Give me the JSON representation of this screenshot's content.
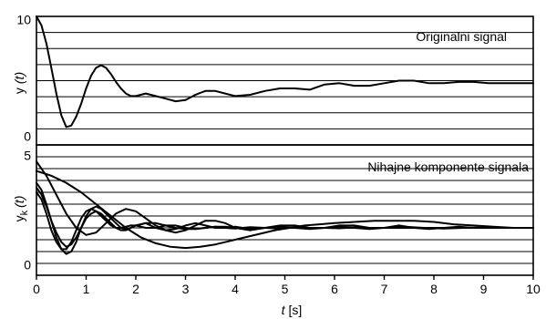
{
  "colors": {
    "line": "#000000",
    "grid": "#000000",
    "background": "#ffffff"
  },
  "chart_data": [
    {
      "type": "line",
      "panel": "top",
      "annotation": "Originalni signal",
      "ylabel": "y",
      "ylabel_arg": "(t)",
      "xlim": [
        0,
        10
      ],
      "ylim": [
        0,
        10
      ],
      "yticks": [
        "0",
        "10"
      ],
      "grid": "horizontal",
      "series": [
        {
          "x": [
            0,
            0.1,
            0.2,
            0.3,
            0.4,
            0.5,
            0.6,
            0.7,
            0.8,
            0.9,
            1.0,
            1.1,
            1.2,
            1.3,
            1.4,
            1.5,
            1.6,
            1.7,
            1.8,
            1.9,
            2.0,
            2.2,
            2.4,
            2.6,
            2.8,
            3.0,
            3.2,
            3.4,
            3.6,
            3.8,
            4.0,
            4.3,
            4.6,
            4.9,
            5.2,
            5.5,
            5.8,
            6.1,
            6.4,
            6.7,
            7.0,
            7.3,
            7.6,
            7.9,
            8.2,
            8.5,
            8.8,
            9.1,
            9.4,
            9.7,
            10.0
          ],
          "y": [
            10.0,
            9.3,
            7.9,
            6.0,
            4.0,
            2.3,
            1.4,
            1.5,
            2.2,
            3.2,
            4.4,
            5.4,
            6.0,
            6.2,
            6.0,
            5.5,
            4.9,
            4.4,
            4.0,
            3.8,
            3.8,
            4.0,
            3.8,
            3.6,
            3.4,
            3.5,
            3.9,
            4.2,
            4.2,
            4.0,
            3.8,
            3.9,
            4.2,
            4.4,
            4.4,
            4.3,
            4.7,
            4.8,
            4.6,
            4.6,
            4.8,
            5.0,
            5.0,
            4.8,
            4.8,
            4.9,
            4.9,
            4.8,
            4.8,
            4.8,
            4.8
          ]
        }
      ]
    },
    {
      "type": "line",
      "panel": "bottom",
      "annotation": "Nihajne komponente signala",
      "ylabel": "y",
      "ylabel_sub": "k",
      "ylabel_arg": "(t)",
      "xlabel": "t",
      "xlabel_unit": "[s]",
      "xlim": [
        0,
        10
      ],
      "ylim": [
        0,
        5.5
      ],
      "yticks": [
        "0",
        "5"
      ],
      "xticks": [
        "0",
        "1",
        "2",
        "3",
        "4",
        "5",
        "6",
        "7",
        "8",
        "9",
        "10"
      ],
      "grid": "horizontal",
      "series": [
        {
          "x": [
            0,
            0.1,
            0.2,
            0.3,
            0.4,
            0.5,
            0.6,
            0.7,
            0.8,
            0.9,
            1.0,
            1.1,
            1.2,
            1.3,
            1.4,
            1.5,
            1.6,
            1.7,
            1.8,
            1.9,
            2.0,
            2.2,
            2.4,
            2.6,
            2.8,
            3.0,
            3.2,
            3.4,
            3.6,
            3.8,
            4.0,
            4.3,
            4.6,
            4.9,
            5.2,
            5.5,
            5.8,
            6.1,
            6.4,
            6.7,
            7.0,
            7.4,
            7.8,
            8.2,
            8.6,
            9.0,
            9.5,
            10.0
          ],
          "y": [
            3.9,
            3.6,
            3.0,
            2.3,
            1.6,
            1.1,
            0.9,
            1.0,
            1.4,
            2.0,
            2.5,
            2.8,
            2.9,
            2.8,
            2.6,
            2.4,
            2.2,
            2.0,
            1.95,
            2.0,
            2.1,
            2.2,
            2.0,
            1.9,
            1.95,
            2.1,
            2.2,
            2.1,
            2.0,
            2.0,
            2.05,
            1.95,
            2.0,
            2.05,
            2.0,
            1.95,
            2.0,
            2.05,
            2.0,
            1.95,
            2.0,
            2.05,
            2.0,
            1.97,
            2.0,
            2.02,
            2.0,
            2.0
          ]
        },
        {
          "x": [
            0,
            0.1,
            0.2,
            0.3,
            0.4,
            0.5,
            0.6,
            0.7,
            0.8,
            0.9,
            1.0,
            1.1,
            1.2,
            1.3,
            1.4,
            1.5,
            1.6,
            1.7,
            1.8,
            1.9,
            2.0,
            2.2,
            2.4,
            2.6,
            2.8,
            3.0,
            3.2,
            3.4,
            3.6,
            3.8,
            4.0,
            4.3,
            4.6,
            4.9,
            5.2,
            5.5,
            5.8,
            6.1,
            6.4,
            6.7,
            7.0,
            7.4,
            7.8,
            8.2,
            8.6,
            9.0,
            9.5,
            10.0
          ],
          "y": [
            3.5,
            3.2,
            2.6,
            1.9,
            1.4,
            1.1,
            1.1,
            1.4,
            1.9,
            2.4,
            2.7,
            2.8,
            2.7,
            2.5,
            2.3,
            2.1,
            2.0,
            2.0,
            2.05,
            2.1,
            2.1,
            2.0,
            2.0,
            2.1,
            2.1,
            2.0,
            1.95,
            2.0,
            2.05,
            2.0,
            1.97,
            2.03,
            2.0,
            1.97,
            2.02,
            2.0,
            2.0,
            1.98,
            2.02,
            2.0,
            2.0,
            2.0,
            2.0,
            2.0,
            2.0,
            2.0,
            2.0,
            2.0
          ]
        },
        {
          "x": [
            0,
            0.1,
            0.2,
            0.3,
            0.4,
            0.5,
            0.6,
            0.7,
            0.8,
            0.9,
            1.0,
            1.1,
            1.2,
            1.3,
            1.4,
            1.5,
            1.6,
            1.7,
            1.8,
            1.9,
            2.0,
            2.2,
            2.4,
            2.6,
            2.8,
            3.0,
            3.2,
            3.4,
            3.6,
            3.8,
            4.0,
            4.3,
            4.6,
            4.9,
            5.2,
            5.5,
            5.8,
            6.1,
            6.4,
            6.7,
            7.0,
            7.4,
            7.8,
            8.2,
            8.6,
            9.0,
            9.5,
            10.0
          ],
          "y": [
            3.7,
            3.4,
            2.9,
            2.3,
            1.8,
            1.4,
            1.2,
            1.3,
            1.6,
            2.0,
            2.4,
            2.6,
            2.7,
            2.6,
            2.4,
            2.2,
            2.0,
            1.9,
            1.9,
            2.0,
            2.1,
            2.2,
            2.2,
            2.1,
            2.0,
            1.95,
            1.95,
            2.0,
            2.05,
            2.05,
            2.0,
            1.98,
            2.0,
            2.02,
            2.0,
            1.98,
            2.0,
            2.0,
            2.0,
            2.0,
            2.0,
            2.0,
            2.0,
            2.0,
            2.0,
            2.0,
            2.0,
            2.0
          ]
        },
        {
          "x": [
            0,
            0.2,
            0.4,
            0.6,
            0.8,
            1.0,
            1.2,
            1.4,
            1.6,
            1.8,
            2.0,
            2.2,
            2.4,
            2.6,
            2.8,
            3.0,
            3.2,
            3.4,
            3.6,
            3.8,
            4.0,
            4.3,
            4.6,
            4.9,
            5.2,
            5.5,
            5.8,
            6.1,
            6.4,
            6.7,
            7.0,
            7.3,
            7.6,
            7.9,
            8.2,
            8.5,
            8.8,
            9.1,
            9.4,
            9.7,
            10.0
          ],
          "y": [
            4.8,
            4.2,
            3.4,
            2.6,
            2.0,
            1.7,
            1.8,
            2.2,
            2.6,
            2.8,
            2.7,
            2.4,
            2.1,
            1.9,
            1.8,
            1.9,
            2.1,
            2.3,
            2.3,
            2.2,
            2.0,
            1.9,
            2.0,
            2.1,
            2.1,
            2.0,
            2.0,
            2.1,
            2.1,
            2.0,
            2.0,
            2.1,
            2.0,
            1.95,
            2.0,
            2.05,
            2.0,
            2.0,
            2.0,
            2.0,
            2.0
          ]
        },
        {
          "x": [
            0,
            0.3,
            0.6,
            0.9,
            1.2,
            1.5,
            1.8,
            2.1,
            2.4,
            2.7,
            3.0,
            3.3,
            3.6,
            3.9,
            4.2,
            4.5,
            4.8,
            5.1,
            5.4,
            5.7,
            6.0,
            6.4,
            6.8,
            7.2,
            7.6,
            8.0,
            8.4,
            8.8,
            9.2,
            9.6,
            10.0
          ],
          "y": [
            4.4,
            4.2,
            3.9,
            3.5,
            3.0,
            2.5,
            2.0,
            1.6,
            1.35,
            1.2,
            1.15,
            1.2,
            1.3,
            1.45,
            1.6,
            1.75,
            1.9,
            2.0,
            2.1,
            2.15,
            2.2,
            2.25,
            2.3,
            2.3,
            2.3,
            2.25,
            2.15,
            2.1,
            2.05,
            2.0,
            2.0
          ]
        }
      ]
    }
  ]
}
